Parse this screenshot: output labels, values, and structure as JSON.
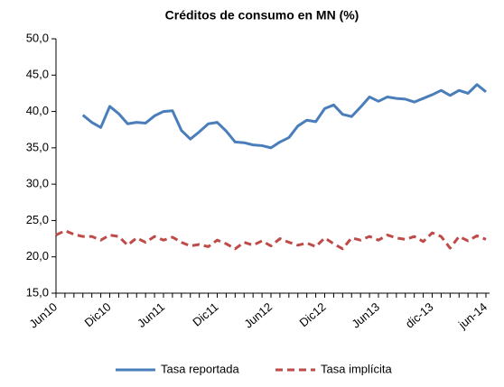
{
  "chart_data": {
    "type": "line",
    "title": "Créditos de consumo en MN (%)",
    "categories": [
      "Jun10",
      null,
      null,
      null,
      null,
      null,
      "Dic10",
      null,
      null,
      null,
      null,
      null,
      "Jun11",
      null,
      null,
      null,
      null,
      null,
      "Dic11",
      null,
      null,
      null,
      null,
      null,
      "Jun12",
      null,
      null,
      null,
      null,
      null,
      "Dic12",
      null,
      null,
      null,
      null,
      null,
      "Jun13",
      null,
      null,
      null,
      null,
      null,
      "dic-13",
      null,
      null,
      null,
      null,
      null,
      "jun-14"
    ],
    "series": [
      {
        "name": "Tasa reportada",
        "color": "#4a7ebb",
        "dash": "solid",
        "values": [
          null,
          null,
          null,
          39.5,
          38.5,
          37.8,
          40.7,
          39.7,
          38.3,
          38.5,
          38.4,
          39.4,
          40.0,
          40.1,
          37.4,
          36.2,
          37.2,
          38.3,
          38.5,
          37.3,
          35.8,
          35.7,
          35.4,
          35.3,
          35.0,
          35.8,
          36.4,
          38.0,
          38.8,
          38.6,
          40.4,
          40.9,
          39.6,
          39.3,
          40.6,
          42.0,
          41.4,
          42.0,
          41.8,
          41.7,
          41.3,
          41.8,
          42.3,
          42.9,
          42.2,
          42.9,
          42.5,
          43.7,
          42.7
        ]
      },
      {
        "name": "Tasa implícita",
        "color": "#be4b48",
        "dash": "dashed",
        "values": [
          23.0,
          23.6,
          23.1,
          22.8,
          22.8,
          22.3,
          23.0,
          22.8,
          21.6,
          22.6,
          22.0,
          22.8,
          22.3,
          22.7,
          22.0,
          21.5,
          21.7,
          21.4,
          22.3,
          21.8,
          21.1,
          22.0,
          21.6,
          22.2,
          21.5,
          22.5,
          22.0,
          21.6,
          21.9,
          21.4,
          22.6,
          21.8,
          21.1,
          22.6,
          22.3,
          22.8,
          22.3,
          23.0,
          22.6,
          22.4,
          22.8,
          22.1,
          23.3,
          22.8,
          21.2,
          22.8,
          22.2,
          22.9,
          22.4
        ]
      }
    ],
    "ylim": [
      15,
      50
    ],
    "yticks": [
      {
        "value": 15,
        "label": "15,0"
      },
      {
        "value": 20,
        "label": "20,0"
      },
      {
        "value": 25,
        "label": "25,0"
      },
      {
        "value": 30,
        "label": "30,0"
      },
      {
        "value": 35,
        "label": "35,0"
      },
      {
        "value": 40,
        "label": "40,0"
      },
      {
        "value": 45,
        "label": "45,0"
      },
      {
        "value": 50,
        "label": "50,0"
      }
    ],
    "grid": false,
    "legend": "bottom"
  }
}
